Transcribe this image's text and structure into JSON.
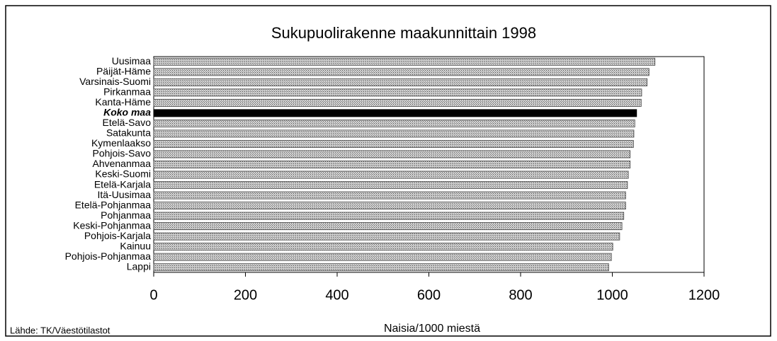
{
  "chart_data": {
    "type": "hbar",
    "title": "Sukupuolirakenne maakunnittain 1998",
    "x_label": "Naisia/1000 miestä",
    "source": "Lähde: TK/Väestötilastot",
    "categories": [
      "Uusimaa",
      "Päijät-Häme",
      "Varsinais-Suomi",
      "Pirkanmaa",
      "Kanta-Häme",
      "Koko maa",
      "Etelä-Savo",
      "Satakunta",
      "Kymenlaakso",
      "Pohjois-Savo",
      "Ahvenanmaa",
      "Keski-Suomi",
      "Etelä-Karjala",
      "Itä-Uusimaa",
      "Etelä-Pohjanmaa",
      "Pohjanmaa",
      "Keski-Pohjanmaa",
      "Pohjois-Karjala",
      "Kainuu",
      "Pohjois-Pohjanmaa",
      "Lappi"
    ],
    "values": [
      1093,
      1080,
      1076,
      1064,
      1063,
      1053,
      1049,
      1047,
      1046,
      1039,
      1039,
      1035,
      1033,
      1029,
      1029,
      1025,
      1021,
      1016,
      1001,
      998,
      992
    ],
    "colors": [
      "#a8a8a8",
      "#a8a8a8",
      "#a8a8a8",
      "#a8a8a8",
      "#a8a8a8",
      "#000000",
      "#a8a8a8",
      "#a8a8a8",
      "#a8a8a8",
      "#a8a8a8",
      "#a8a8a8",
      "#a8a8a8",
      "#a8a8a8",
      "#a8a8a8",
      "#a8a8a8",
      "#a8a8a8",
      "#a8a8a8",
      "#a8a8a8",
      "#a8a8a8",
      "#a8a8a8",
      "#a8a8a8"
    ],
    "xlim": [
      0,
      1200
    ],
    "xticks": [
      0,
      200,
      400,
      600,
      800,
      1000,
      1200
    ]
  }
}
